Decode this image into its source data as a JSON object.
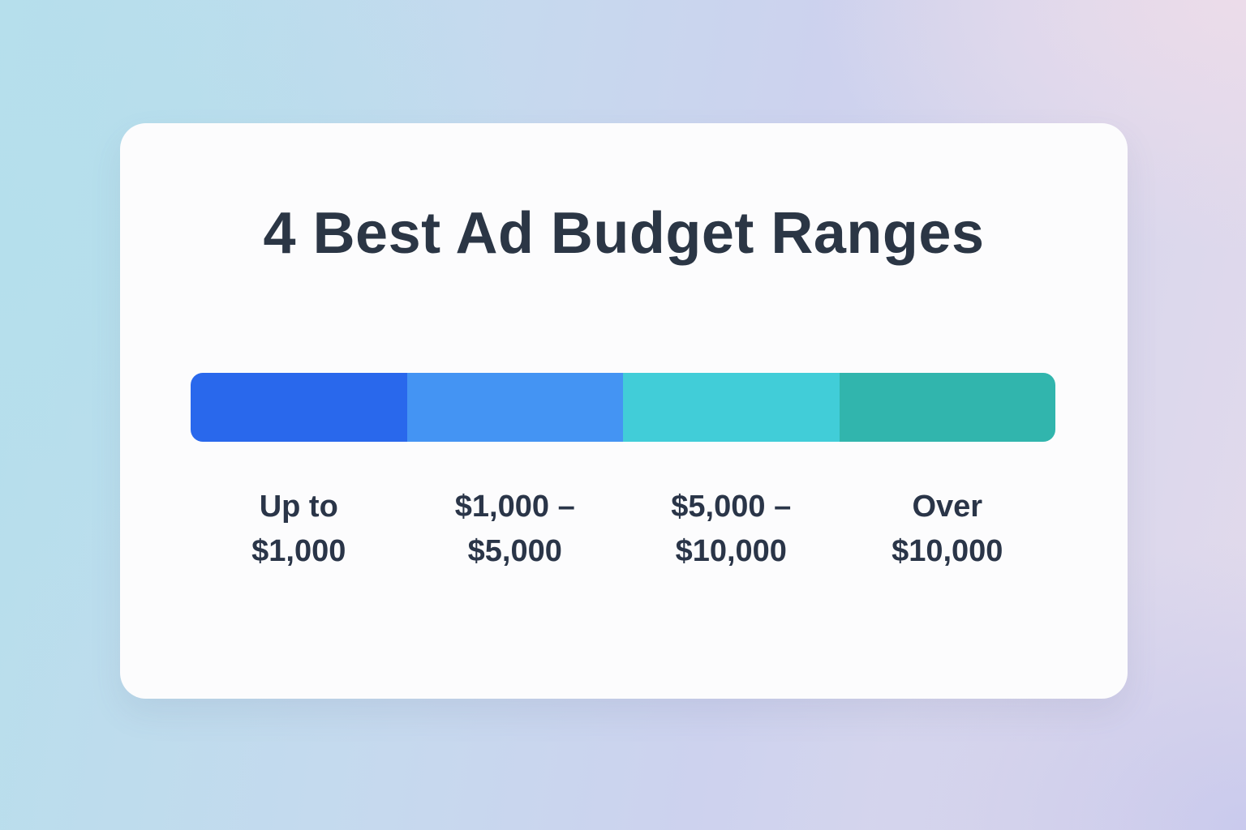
{
  "card": {
    "title": "4 Best Ad Budget Ranges"
  },
  "chart_data": {
    "type": "bar",
    "subtype": "horizontal-segmented-range-bar",
    "title": "4 Best Ad Budget Ranges",
    "categories": [
      "Up to $1,000",
      "$1,000 – $5,000",
      "$5,000 – $10,000",
      "Over $10,000"
    ],
    "values": [
      0.25,
      0.25,
      0.25,
      0.25
    ],
    "xlabel": "",
    "ylabel": "",
    "legend": "none",
    "grid": false,
    "segments": [
      {
        "label": "Up to $1,000",
        "label_line1": "Up to",
        "label_line2": "$1,000",
        "color": "#2968EC",
        "share": 0.25
      },
      {
        "label": "$1,000 – $5,000",
        "label_line1": "$1,000 –",
        "label_line2": "$5,000",
        "color": "#4494F3",
        "share": 0.25
      },
      {
        "label": "$5,000 – $10,000",
        "label_line1": "$5,000 –",
        "label_line2": "$10,000",
        "color": "#41CDD8",
        "share": 0.25
      },
      {
        "label": "Over $10,000",
        "label_line1": "Over",
        "label_line2": "$10,000",
        "color": "#31B5AD",
        "share": 0.25
      }
    ]
  },
  "theme": {
    "background_gradient_corners": {
      "top_left": "#B6DFEC",
      "top_right": "#E9DCEA",
      "bottom_left": "#C5E3EA",
      "bottom_right": "#CBCCEC"
    },
    "card_background": "#FCFCFD",
    "text_color": "#2B3645"
  }
}
